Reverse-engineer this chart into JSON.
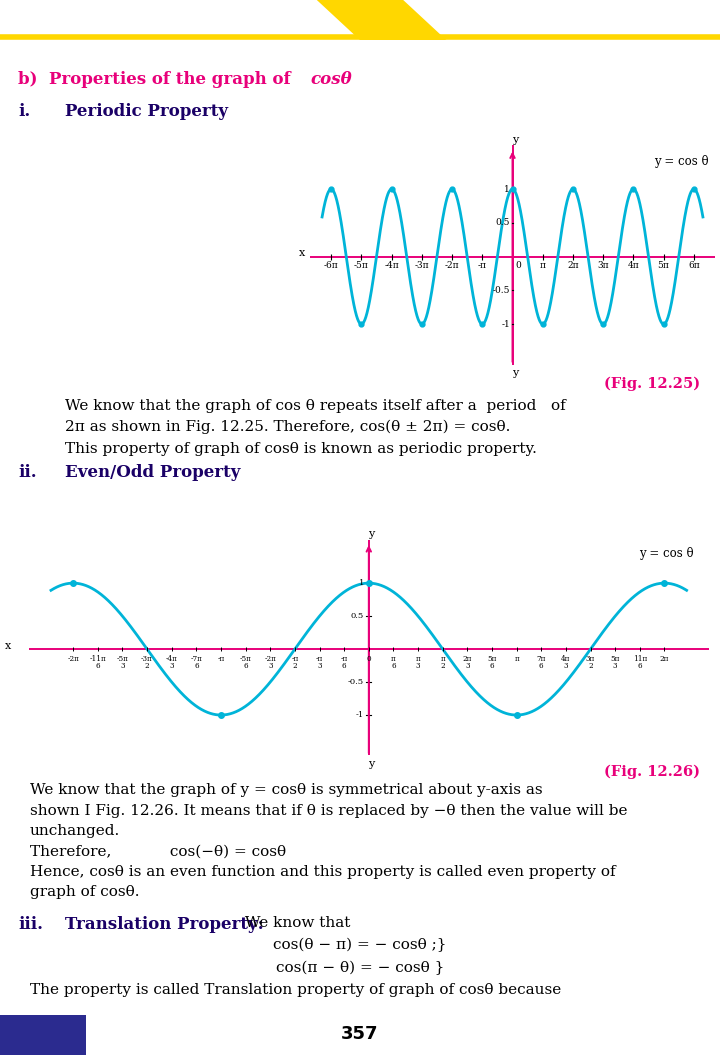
{
  "magenta": "#E8007A",
  "cyan": "#00B4D8",
  "dark_blue": "#1a0066",
  "header_yellow": "#FFD700",
  "header_blue": "#2B2B8F",
  "page_number": "357",
  "fig1_caption": "(Fig. 12.25)",
  "fig2_caption": "(Fig. 12.26)"
}
